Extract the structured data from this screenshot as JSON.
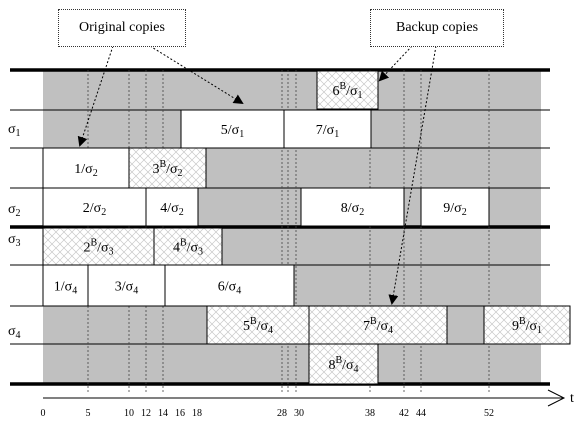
{
  "callouts": {
    "original": "Original  copies",
    "backup": "Backup copies"
  },
  "processors": [
    {
      "id": "sigma1",
      "label": "σ",
      "sub": "1"
    },
    {
      "id": "sigma2",
      "label": "σ",
      "sub": "2"
    },
    {
      "id": "sigma3",
      "label": "σ",
      "sub": "3"
    },
    {
      "id": "sigma4",
      "label": "σ",
      "sub": "4"
    }
  ],
  "tasks": [
    {
      "id": "6B-s1",
      "num": "6",
      "backup": true,
      "proc": "1"
    },
    {
      "id": "5-s1",
      "num": "5",
      "backup": false,
      "proc": "1"
    },
    {
      "id": "7-s1",
      "num": "7",
      "backup": false,
      "proc": "1"
    },
    {
      "id": "1-s2",
      "num": "1",
      "backup": false,
      "proc": "2"
    },
    {
      "id": "3B-s2",
      "num": "3",
      "backup": true,
      "proc": "2"
    },
    {
      "id": "2-s2",
      "num": "2",
      "backup": false,
      "proc": "2"
    },
    {
      "id": "4-s2",
      "num": "4",
      "backup": false,
      "proc": "2"
    },
    {
      "id": "8-s2",
      "num": "8",
      "backup": false,
      "proc": "2"
    },
    {
      "id": "9-s2",
      "num": "9",
      "backup": false,
      "proc": "2"
    },
    {
      "id": "2B-s3",
      "num": "2",
      "backup": true,
      "proc": "3"
    },
    {
      "id": "4B-s3",
      "num": "4",
      "backup": true,
      "proc": "3"
    },
    {
      "id": "1-s4",
      "num": "1",
      "backup": false,
      "proc": "4"
    },
    {
      "id": "3-s4",
      "num": "3",
      "backup": false,
      "proc": "4"
    },
    {
      "id": "6-s4",
      "num": "6",
      "backup": false,
      "proc": "4"
    },
    {
      "id": "5B-s4",
      "num": "5",
      "backup": true,
      "proc": "4"
    },
    {
      "id": "7B-s4",
      "num": "7",
      "backup": true,
      "proc": "4"
    },
    {
      "id": "9B-s1",
      "num": "9",
      "backup": true,
      "proc": "1"
    },
    {
      "id": "8B-s4",
      "num": "8",
      "backup": true,
      "proc": "4"
    }
  ],
  "axis": {
    "ticks": [
      "0",
      "5",
      "10",
      "12",
      "14",
      "16",
      "18",
      "28",
      "30",
      "38",
      "42",
      "44",
      "52"
    ],
    "unit_label": "t"
  },
  "symbols": {
    "slash": "/",
    "backup_mark": "B",
    "sigma": "σ"
  }
}
